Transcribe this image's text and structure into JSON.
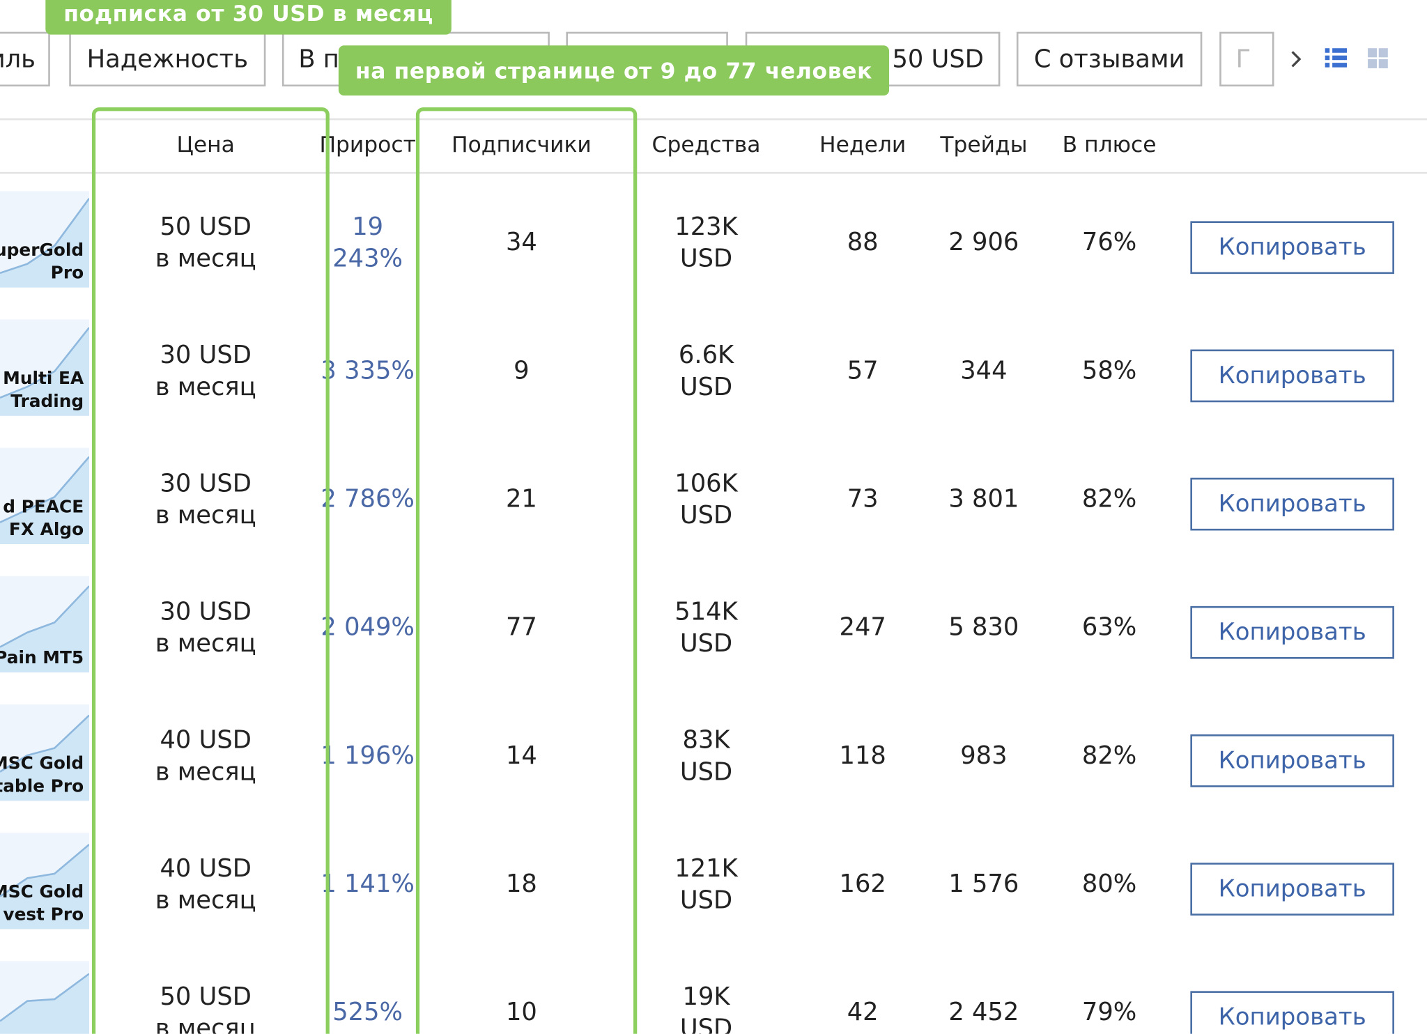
{
  "filters": [
    "иль",
    "Надежность",
    "В п",
    "50 USD",
    "С отзывами",
    "Г"
  ],
  "annotations": [
    "подписка от 30 USD в месяц",
    "на первой странице от 9 до 77 человек"
  ],
  "table": {
    "headers": [
      "Цена",
      "Прирост",
      "Подписчики",
      "Средства",
      "Недели",
      "Трейды",
      "В плюсе"
    ],
    "rows": [
      {
        "name": [
          "uperGold",
          "Pro"
        ],
        "price": "50 USD",
        "period": "в месяц",
        "growth": [
          "19",
          "243%"
        ],
        "subscribers": 34,
        "funds": "123K",
        "funds_unit": "USD",
        "weeks": 88,
        "trades": "2 906",
        "plus": "76%",
        "action": "Копировать"
      },
      {
        "name": [
          "Multi EA",
          "Trading"
        ],
        "price": "30 USD",
        "period": "в месяц",
        "growth": [
          "3 335%"
        ],
        "subscribers": 9,
        "funds": "6.6K",
        "funds_unit": "USD",
        "weeks": 57,
        "trades": "344",
        "plus": "58%",
        "action": "Копировать"
      },
      {
        "name": [
          "d PEACE",
          "FX Algo"
        ],
        "price": "30 USD",
        "period": "в месяц",
        "growth": [
          "2 786%"
        ],
        "subscribers": 21,
        "funds": "106K",
        "funds_unit": "USD",
        "weeks": 73,
        "trades": "3 801",
        "plus": "82%",
        "action": "Копировать"
      },
      {
        "name": [
          "Pain MT5"
        ],
        "price": "30 USD",
        "period": "в месяц",
        "growth": [
          "2 049%"
        ],
        "subscribers": 77,
        "funds": "514K",
        "funds_unit": "USD",
        "weeks": 247,
        "trades": "5 830",
        "plus": "63%",
        "action": "Копировать"
      },
      {
        "name": [
          "MSC Gold",
          "table Pro"
        ],
        "price": "40 USD",
        "period": "в месяц",
        "growth": [
          "1 196%"
        ],
        "subscribers": 14,
        "funds": "83K",
        "funds_unit": "USD",
        "weeks": 118,
        "trades": "983",
        "plus": "82%",
        "action": "Копировать"
      },
      {
        "name": [
          "MSC Gold",
          "vest Pro"
        ],
        "price": "40 USD",
        "period": "в месяц",
        "growth": [
          "1 141%"
        ],
        "subscribers": 18,
        "funds": "121K",
        "funds_unit": "USD",
        "weeks": 162,
        "trades": "1 576",
        "plus": "80%",
        "action": "Копировать"
      },
      {
        "name": [],
        "price": "50 USD",
        "period": "в месяц",
        "growth": [
          "525%"
        ],
        "subscribers": 10,
        "funds": "19K",
        "funds_unit": "USD",
        "weeks": 42,
        "trades": "2 452",
        "plus": "79%",
        "action": "Копировать"
      }
    ]
  }
}
